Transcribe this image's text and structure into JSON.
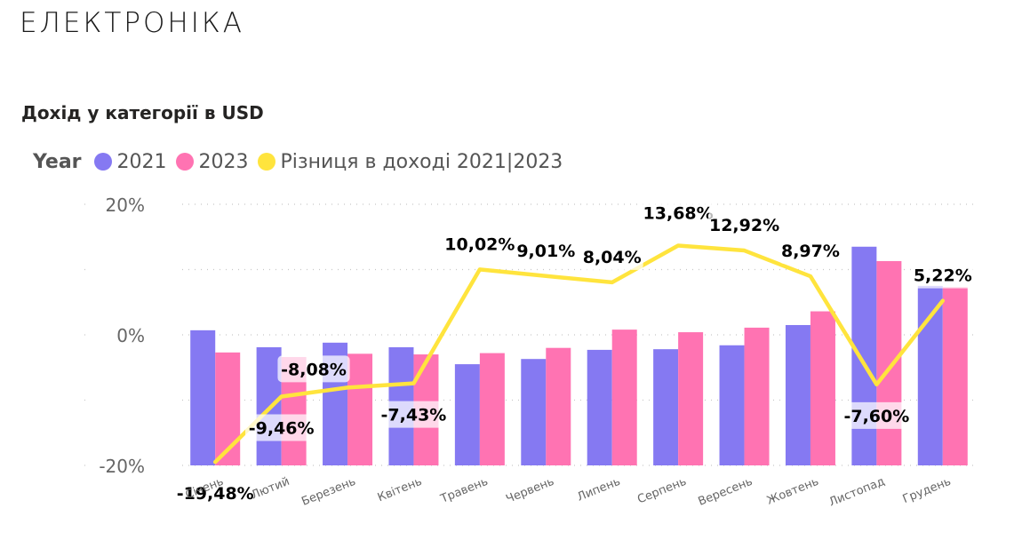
{
  "header": {
    "brand": "ЕЛЕКТРОНІКА"
  },
  "title": "Дохід у категорії в USD",
  "legend": {
    "title": "Year",
    "items": [
      {
        "label": "2021",
        "color": "#8579F2"
      },
      {
        "label": "2023",
        "color": "#FF73B2"
      },
      {
        "label": "Різниця в доході 2021|2023",
        "color": "#FFE43D"
      }
    ]
  },
  "chart_data": {
    "type": "bar",
    "categories": [
      "Січень",
      "Лютий",
      "Березень",
      "Квітень",
      "Травень",
      "Червень",
      "Липень",
      "Серпень",
      "Вересень",
      "Жовтень",
      "Листопад",
      "Грудень"
    ],
    "y_ticks": [
      "20%",
      "0%",
      "-20%"
    ],
    "ylim": [
      -20,
      20
    ],
    "series": [
      {
        "name": "2021",
        "type": "bar",
        "color": "#8579F2",
        "values": [
          0.7,
          -1.9,
          -1.2,
          -1.9,
          -4.5,
          -3.7,
          -2.3,
          -2.2,
          -1.6,
          1.5,
          13.5,
          7.5
        ]
      },
      {
        "name": "2023",
        "type": "bar",
        "color": "#FF73B2",
        "values": [
          -2.7,
          -3.4,
          -2.9,
          -3.0,
          -2.8,
          -2.0,
          0.8,
          0.4,
          1.1,
          3.6,
          11.3,
          7.3
        ]
      },
      {
        "name": "Різниця в доході 2021|2023",
        "type": "line",
        "color": "#FFE43D",
        "values": [
          -19.48,
          -9.46,
          -8.08,
          -7.43,
          10.02,
          9.01,
          8.04,
          13.68,
          12.92,
          8.97,
          -7.6,
          5.22
        ],
        "labels": [
          "-19,48%",
          "-9,46%",
          "-8,08%",
          "-7,43%",
          "10,02%",
          "9,01%",
          "8,04%",
          "13,68%",
          "12,92%",
          "8,97%",
          "-7,60%",
          "5,22%"
        ]
      }
    ],
    "grid": "dotted",
    "legend_position": "top-left"
  }
}
